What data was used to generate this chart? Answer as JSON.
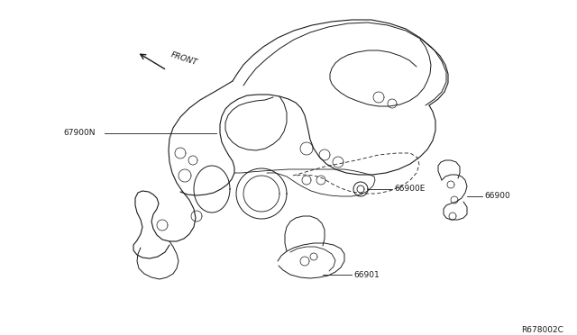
{
  "bg_color": "#ffffff",
  "diagram_code": "R678002C",
  "labels": {
    "front_arrow": "FRONT",
    "part1": "67900N",
    "part2": "66900E",
    "part3": "66900",
    "part4": "66901"
  }
}
